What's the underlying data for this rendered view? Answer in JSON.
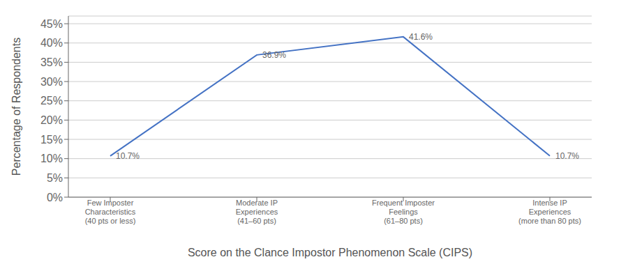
{
  "chart_data": {
    "type": "line",
    "xlabel": "Score on the Clance Impostor Phenomenon Scale (CIPS)",
    "ylabel": "Percentage of Respondents",
    "categories": [
      "Few Imposter\nCharacteristics\n(40 pts or less)",
      "Moderate IP\nExperiences\n(41–60 pts)",
      "Frequent Imposter\nFeelings\n(61–80 pts)",
      "Intense IP\nExperiences\n(more than 80 pts)"
    ],
    "values": [
      10.7,
      36.9,
      41.6,
      10.7
    ],
    "value_labels": [
      "10.7%",
      "36.9%",
      "41.6%",
      "10.7%"
    ],
    "data_labels": true,
    "color": "#4472C4",
    "ylim": [
      0,
      47
    ],
    "yticks": [
      {
        "value": 0,
        "label": "0%"
      },
      {
        "value": 5,
        "label": "5%"
      },
      {
        "value": 10,
        "label": "10%"
      },
      {
        "value": 15,
        "label": "15%"
      },
      {
        "value": 20,
        "label": "20%"
      },
      {
        "value": 25,
        "label": "25%"
      },
      {
        "value": 30,
        "label": "30%"
      },
      {
        "value": 35,
        "label": "35%"
      },
      {
        "value": 40,
        "label": "40%"
      },
      {
        "value": 45,
        "label": "45%"
      }
    ],
    "grid": true
  }
}
